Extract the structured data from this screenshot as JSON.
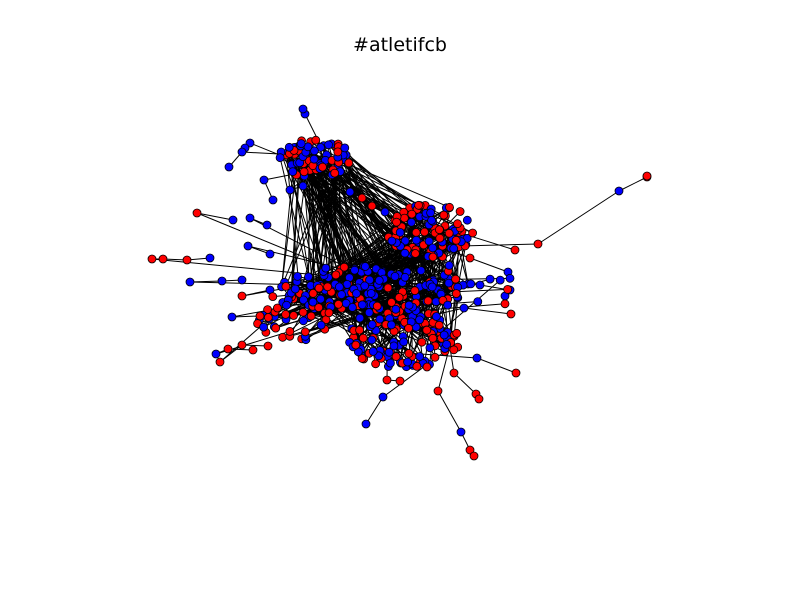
{
  "figure": {
    "title": "#atletifcb"
  },
  "colors": {
    "node_a": "#ff0000",
    "node_b": "#0000ff",
    "edge": "#000000",
    "node_outline": "#000000",
    "background": "#ffffff"
  }
}
